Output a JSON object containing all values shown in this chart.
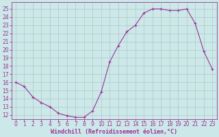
{
  "x": [
    0,
    1,
    2,
    3,
    4,
    5,
    6,
    7,
    8,
    9,
    10,
    11,
    12,
    13,
    14,
    15,
    16,
    17,
    18,
    19,
    20,
    21,
    22,
    23
  ],
  "y": [
    16.0,
    15.5,
    14.2,
    13.5,
    13.0,
    12.2,
    11.9,
    11.7,
    11.7,
    12.5,
    14.8,
    18.5,
    20.5,
    22.2,
    23.0,
    24.5,
    25.0,
    25.0,
    24.8,
    24.8,
    25.0,
    23.2,
    19.8,
    17.6
  ],
  "line_color": "#993399",
  "marker": "+",
  "marker_size": 3,
  "bg_color": "#cce8e8",
  "grid_color": "#b0c8c8",
  "xlabel": "Windchill (Refroidissement éolien,°C)",
  "xlabel_color": "#993399",
  "tick_color": "#993399",
  "spine_color": "#993399",
  "ylim": [
    11.5,
    25.8
  ],
  "yticks": [
    12,
    13,
    14,
    15,
    16,
    17,
    18,
    19,
    20,
    21,
    22,
    23,
    24,
    25
  ],
  "xlim": [
    -0.5,
    23.5
  ],
  "xticks": [
    0,
    1,
    2,
    3,
    4,
    5,
    6,
    7,
    8,
    9,
    10,
    11,
    12,
    13,
    14,
    15,
    16,
    17,
    18,
    19,
    20,
    21,
    22,
    23
  ],
  "tick_fontsize": 5.5,
  "xlabel_fontsize": 6.0
}
